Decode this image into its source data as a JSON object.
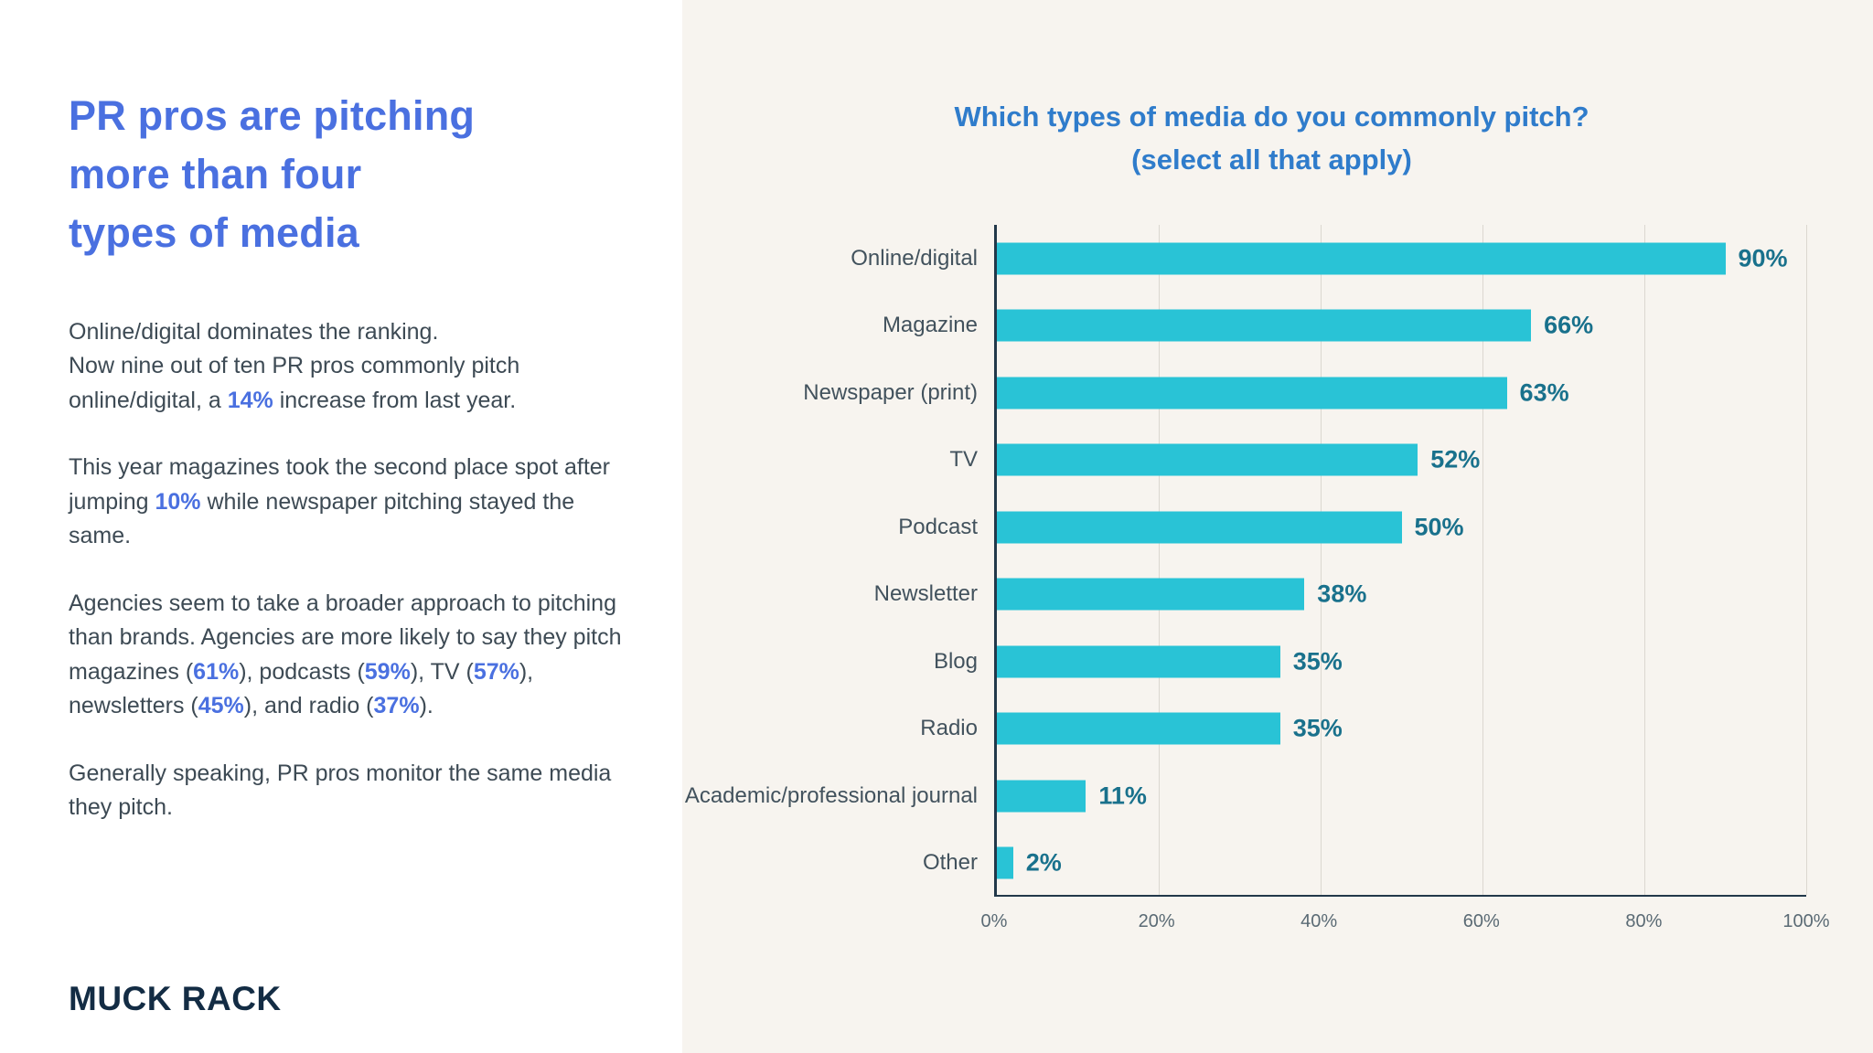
{
  "colors": {
    "headline_blue": "#4a70e0",
    "title_blue": "#2f7ccb",
    "stat_blue": "#4a70e0",
    "bar_teal": "#29c3d6",
    "value_teal": "#19718c",
    "background_left": "#ffffff",
    "background_right": "#f7f4ef",
    "logo_navy": "#132c44"
  },
  "left": {
    "headline": "PR pros are pitching\nmore than four\ntypes of media",
    "paragraphs": [
      {
        "segments": [
          {
            "t": "Online/digital dominates the ranking.\nNow nine out of ten PR pros commonly pitch online/digital, a "
          },
          {
            "t": "14%",
            "hl": true
          },
          {
            "t": " increase from last year."
          }
        ]
      },
      {
        "segments": [
          {
            "t": "This year magazines took the second place spot after jumping "
          },
          {
            "t": "10%",
            "hl": true
          },
          {
            "t": " while newspaper pitching stayed the same."
          }
        ]
      },
      {
        "segments": [
          {
            "t": "Agencies seem to take a broader approach to pitching than brands. Agencies are more likely to say they pitch magazines ("
          },
          {
            "t": "61%",
            "hl": true
          },
          {
            "t": "), podcasts ("
          },
          {
            "t": "59%",
            "hl": true
          },
          {
            "t": "), TV ("
          },
          {
            "t": "57%",
            "hl": true
          },
          {
            "t": "), newsletters ("
          },
          {
            "t": "45%",
            "hl": true
          },
          {
            "t": "), and radio ("
          },
          {
            "t": "37%",
            "hl": true
          },
          {
            "t": ")."
          }
        ]
      },
      {
        "segments": [
          {
            "t": "Generally speaking, PR pros monitor the same media they pitch."
          }
        ]
      }
    ],
    "logo": "MUCK RACK"
  },
  "chart_data": {
    "type": "bar",
    "orientation": "horizontal",
    "title": "Which types of media do you commonly pitch?\n(select all that apply)",
    "categories": [
      "Online/digital",
      "Magazine",
      "Newspaper (print)",
      "TV",
      "Podcast",
      "Newsletter",
      "Blog",
      "Radio",
      "Academic/professional journal",
      "Other"
    ],
    "values": [
      90,
      66,
      63,
      52,
      50,
      38,
      35,
      35,
      11,
      2
    ],
    "value_labels": [
      "90%",
      "66%",
      "63%",
      "52%",
      "50%",
      "38%",
      "35%",
      "35%",
      "11%",
      "2%"
    ],
    "xlabel": "",
    "ylabel": "",
    "xlim": [
      0,
      100
    ],
    "x_ticks": [
      "0%",
      "20%",
      "40%",
      "60%",
      "80%",
      "100%"
    ],
    "x_tick_values": [
      0,
      20,
      40,
      60,
      80,
      100
    ],
    "grid": true,
    "legend": "none",
    "bar_color": "#29c3d6",
    "value_label_color": "#19718c",
    "title_color": "#2f7ccb"
  }
}
